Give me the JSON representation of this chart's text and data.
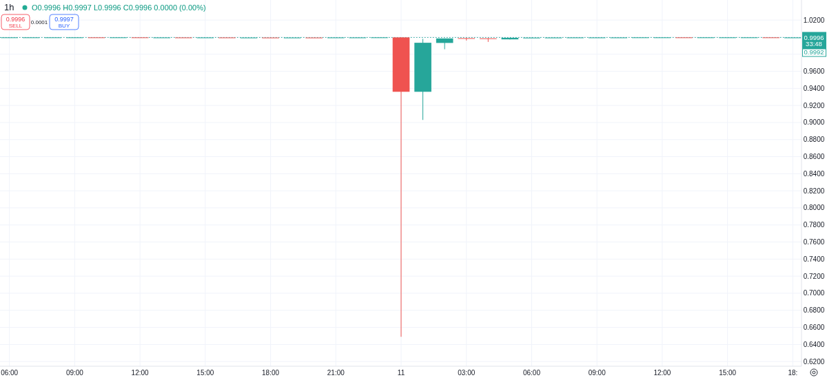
{
  "chart_data": {
    "type": "candlestick",
    "title": "1h",
    "annotations": [
      "O0.9996 H0.9997 L0.9996 C0.9996 0.0000 (0.00%)",
      "0.9996",
      "SELL",
      "0.0001",
      "0.9997",
      "BUY",
      "33:48",
      "0.9992"
    ],
    "x": [
      "--10-10T06:00",
      "--10-10T07:00",
      "--10-10T08:00",
      "--10-10T09:00",
      "--10-10T10:00",
      "--10-10T11:00",
      "--10-10T12:00",
      "--10-10T13:00",
      "--10-10T14:00",
      "--10-10T15:00",
      "--10-10T16:00",
      "--10-10T17:00",
      "--10-10T18:00",
      "--10-10T19:00",
      "--10-10T20:00",
      "--10-10T21:00",
      "--10-10T22:00",
      "--10-10T23:00",
      "--10-11T00:00",
      "--10-11T01:00",
      "--10-11T02:00",
      "--10-11T03:00",
      "--10-11T04:00",
      "--10-11T05:00",
      "--10-11T06:00",
      "--10-11T07:00",
      "--10-11T08:00",
      "--10-11T09:00",
      "--10-11T10:00",
      "--10-11T11:00",
      "--10-11T12:00",
      "--10-11T13:00",
      "--10-11T14:00",
      "--10-11T15:00",
      "--10-11T16:00",
      "--10-11T17:00",
      "--10-11T18:00"
    ],
    "ohlc": [
      [
        0.9996,
        0.9997,
        0.9996,
        0.9997
      ],
      [
        0.9997,
        0.9997,
        0.9996,
        0.9997
      ],
      [
        0.9997,
        0.9997,
        0.9996,
        0.9997
      ],
      [
        0.9997,
        0.9997,
        0.9996,
        0.9997
      ],
      [
        0.9997,
        0.9997,
        0.9996,
        0.9996
      ],
      [
        0.9996,
        0.9997,
        0.9996,
        0.9997
      ],
      [
        0.9997,
        0.9997,
        0.9996,
        0.9996
      ],
      [
        0.9996,
        0.9997,
        0.9996,
        0.9996
      ],
      [
        0.9996,
        0.9997,
        0.9995,
        0.9995
      ],
      [
        0.9995,
        0.9997,
        0.9995,
        0.9996
      ],
      [
        0.9996,
        0.9996,
        0.9995,
        0.9995
      ],
      [
        0.9995,
        0.9996,
        0.9995,
        0.9995
      ],
      [
        0.9995,
        0.9996,
        0.9994,
        0.9994
      ],
      [
        0.9994,
        0.9995,
        0.9994,
        0.9995
      ],
      [
        0.9995,
        0.9996,
        0.9994,
        0.9994
      ],
      [
        0.9994,
        0.9996,
        0.9994,
        0.9996
      ],
      [
        0.9996,
        0.9997,
        0.9995,
        0.9996
      ],
      [
        0.9996,
        0.9997,
        0.9996,
        0.9997
      ],
      [
        0.9997,
        0.9998,
        0.649,
        0.936
      ],
      [
        0.936,
        0.998,
        0.903,
        0.9934
      ],
      [
        0.9932,
        0.9985,
        0.9858,
        0.9985
      ],
      [
        0.9988,
        0.999,
        0.996,
        0.9986
      ],
      [
        0.9986,
        0.9989,
        0.9944,
        0.9985
      ],
      [
        0.9974,
        0.9993,
        0.9972,
        0.9992
      ],
      [
        0.9992,
        0.9995,
        0.9991,
        0.9994
      ],
      [
        0.9994,
        0.9996,
        0.9993,
        0.9995
      ],
      [
        0.9995,
        0.9996,
        0.9994,
        0.9996
      ],
      [
        0.9996,
        0.9997,
        0.9995,
        0.9996
      ],
      [
        0.9996,
        0.9997,
        0.9996,
        0.9996
      ],
      [
        0.9996,
        0.9997,
        0.9996,
        0.9997
      ],
      [
        0.9996,
        0.9997,
        0.9996,
        0.9997
      ],
      [
        0.9997,
        0.9997,
        0.9996,
        0.9996
      ],
      [
        0.9996,
        0.9997,
        0.9996,
        0.9997
      ],
      [
        0.9997,
        0.9997,
        0.9996,
        0.9997
      ],
      [
        0.9997,
        0.9997,
        0.9996,
        0.9997
      ],
      [
        0.9997,
        0.9997,
        0.9996,
        0.9996
      ],
      [
        0.9996,
        0.9997,
        0.9996,
        0.9996
      ]
    ],
    "colors": [
      "#26a69a",
      "#26a69a",
      "#26a69a",
      "#26a69a",
      "#ef5350",
      "#26a69a",
      "#ef5350",
      "#26a69a",
      "#ef5350",
      "#26a69a",
      "#ef5350",
      "#26a69a",
      "#ef5350",
      "#26a69a",
      "#ef5350",
      "#26a69a",
      "#26a69a",
      "#26a69a",
      "#ef5350",
      "#26a69a",
      "#26a69a",
      "#ef5350",
      "#ef5350",
      "#26a69a",
      "#26a69a",
      "#26a69a",
      "#26a69a",
      "#26a69a",
      "#26a69a",
      "#26a69a",
      "#26a69a",
      "#ef5350",
      "#26a69a",
      "#26a69a",
      "#26a69a",
      "#ef5350",
      "#26a69a"
    ],
    "xlim": [
      "--10-10T05:34",
      "--10-11T18:24"
    ],
    "xticks": [
      {
        "value": "--10-10T06:00",
        "label": "06:00"
      },
      {
        "value": "--10-10T09:00",
        "label": "09:00"
      },
      {
        "value": "--10-10T12:00",
        "label": "12:00"
      },
      {
        "value": "--10-10T15:00",
        "label": "15:00"
      },
      {
        "value": "--10-10T18:00",
        "label": "18:00"
      },
      {
        "value": "--10-10T21:00",
        "label": "21:00"
      },
      {
        "value": "--10-11T00:00",
        "label": "11"
      },
      {
        "value": "--10-11T03:00",
        "label": "03:00"
      },
      {
        "value": "--10-11T06:00",
        "label": "06:00"
      },
      {
        "value": "--10-11T09:00",
        "label": "09:00"
      },
      {
        "value": "--10-11T12:00",
        "label": "12:00"
      },
      {
        "value": "--10-11T15:00",
        "label": "15:00"
      },
      {
        "value": "--10-11T18:00",
        "label": "18:"
      }
    ],
    "ylim": [
      0.6145,
      1.0435
    ],
    "yticks": [
      {
        "value": 1.02,
        "label": "1.0200"
      },
      {
        "value": 1.0,
        "label": null
      },
      {
        "value": 0.98,
        "label": null
      },
      {
        "value": 0.96,
        "label": "0.9600"
      },
      {
        "value": 0.94,
        "label": "0.9400"
      },
      {
        "value": 0.92,
        "label": "0.9200"
      },
      {
        "value": 0.9,
        "label": "0.9000"
      },
      {
        "value": 0.88,
        "label": "0.8800"
      },
      {
        "value": 0.86,
        "label": "0.8600"
      },
      {
        "value": 0.84,
        "label": "0.8400"
      },
      {
        "value": 0.82,
        "label": "0.8200"
      },
      {
        "value": 0.8,
        "label": "0.8000"
      },
      {
        "value": 0.78,
        "label": "0.7800"
      },
      {
        "value": 0.76,
        "label": "0.7600"
      },
      {
        "value": 0.74,
        "label": "0.7400"
      },
      {
        "value": 0.72,
        "label": "0.7200"
      },
      {
        "value": 0.7,
        "label": "0.7000"
      },
      {
        "value": 0.68,
        "label": "0.6800"
      },
      {
        "value": 0.66,
        "label": "0.6600"
      },
      {
        "value": 0.64,
        "label": "0.6400"
      },
      {
        "value": 0.62,
        "label": "0.6200"
      }
    ],
    "grid": true,
    "ref_lines": [
      {
        "axis": "y",
        "value": 0.9996,
        "label": "0.9996",
        "color": "#26a69a",
        "line_style": "dotted"
      }
    ]
  }
}
